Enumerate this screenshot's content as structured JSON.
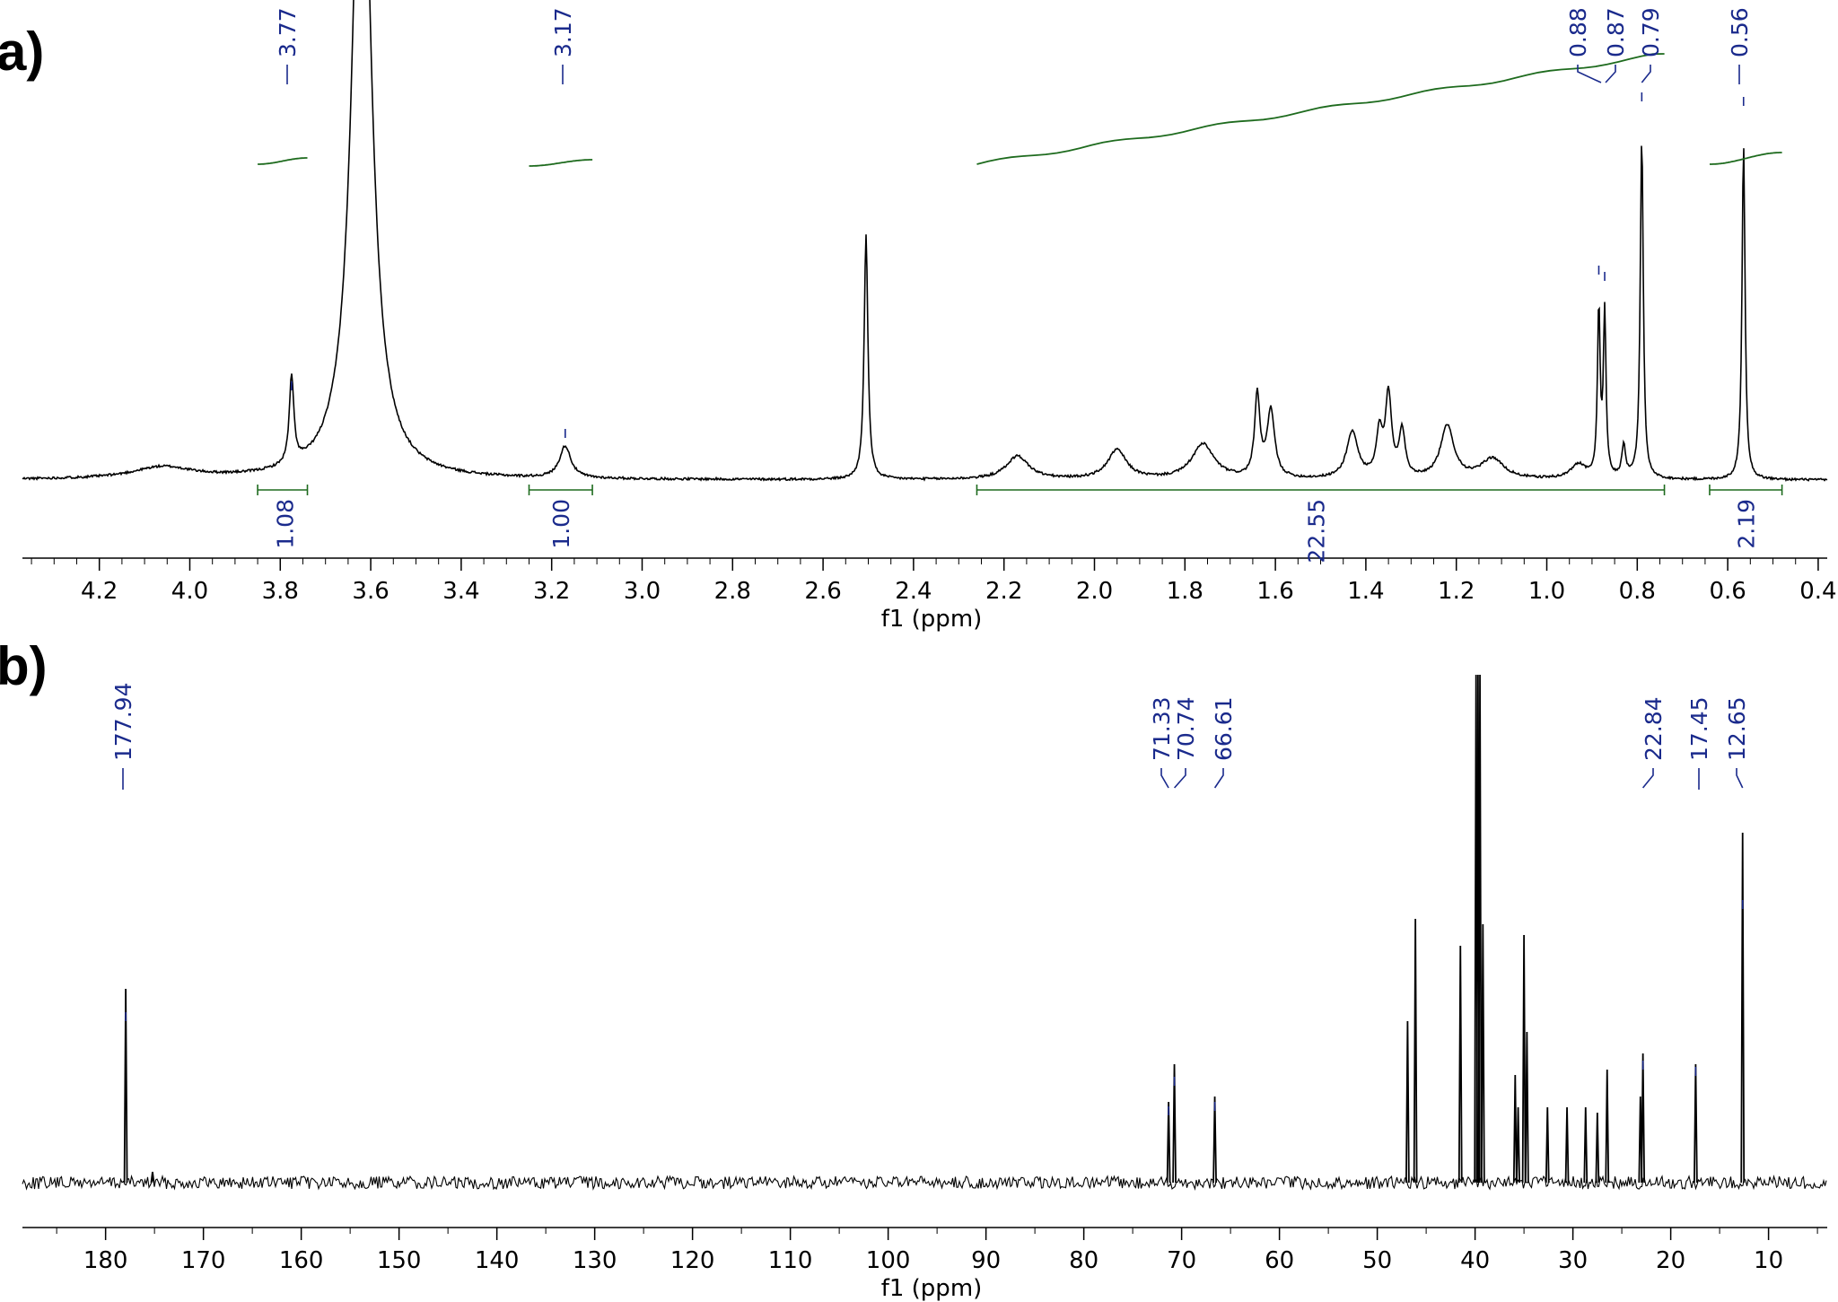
{
  "panel_labels": [
    "a)",
    "b)"
  ],
  "colors": {
    "spectrum": "#000000",
    "integral": "#1e6b1e",
    "label": "#1a2a8c"
  },
  "chart_data": [
    {
      "type": "line",
      "nucleus_panel": "a)",
      "xlabel": "f1 (ppm)",
      "xlim": [
        4.37,
        0.38
      ],
      "x_reversed": true,
      "tick_values": [
        4.2,
        4.0,
        3.8,
        3.6,
        3.4,
        3.2,
        3.0,
        2.8,
        2.6,
        2.4,
        2.2,
        2.0,
        1.8,
        1.6,
        1.4,
        1.2,
        1.0,
        0.8,
        0.6,
        0.4
      ],
      "tick_labels": [
        "4.2",
        "4.0",
        "3.8",
        "3.6",
        "3.4",
        "3.2",
        "3.0",
        "2.8",
        "2.6",
        "2.4",
        "2.2",
        "2.0",
        "1.8",
        "1.6",
        "1.4",
        "1.2",
        "1.0",
        "0.8",
        "0.6",
        "0.4"
      ],
      "peak_labels": [
        {
          "ppm": 3.77,
          "label": "3.77"
        },
        {
          "ppm": 3.17,
          "label": "3.17"
        },
        {
          "ppm": 0.88,
          "label": "0.88"
        },
        {
          "ppm": 0.87,
          "label": "0.87"
        },
        {
          "ppm": 0.79,
          "label": "0.79"
        },
        {
          "ppm": 0.56,
          "label": "0.56"
        }
      ],
      "peaks": [
        {
          "ppm": 3.62,
          "height": 2.5,
          "width": 0.025
        },
        {
          "ppm": 3.775,
          "height": 0.3,
          "width": 0.006
        },
        {
          "ppm": 3.17,
          "height": 0.11,
          "width": 0.015
        },
        {
          "ppm": 2.505,
          "height": 0.84,
          "width": 0.005
        },
        {
          "ppm": 4.06,
          "height": 0.04,
          "width": 0.08
        },
        {
          "ppm": 0.885,
          "height": 0.58,
          "width": 0.0035
        },
        {
          "ppm": 0.872,
          "height": 0.56,
          "width": 0.0035
        },
        {
          "ppm": 0.79,
          "height": 1.18,
          "width": 0.004
        },
        {
          "ppm": 0.565,
          "height": 1.16,
          "width": 0.004
        },
        {
          "ppm": 0.83,
          "height": 0.11,
          "width": 0.005
        },
        {
          "ppm": 1.64,
          "height": 0.28,
          "width": 0.007
        },
        {
          "ppm": 1.61,
          "height": 0.23,
          "width": 0.01
        },
        {
          "ppm": 1.35,
          "height": 0.28,
          "width": 0.008
        },
        {
          "ppm": 1.37,
          "height": 0.15,
          "width": 0.008
        },
        {
          "ppm": 1.32,
          "height": 0.16,
          "width": 0.008
        },
        {
          "ppm": 1.43,
          "height": 0.16,
          "width": 0.015
        },
        {
          "ppm": 1.22,
          "height": 0.18,
          "width": 0.018
        },
        {
          "ppm": 1.76,
          "height": 0.12,
          "width": 0.03
        },
        {
          "ppm": 1.95,
          "height": 0.1,
          "width": 0.025
        },
        {
          "ppm": 2.17,
          "height": 0.08,
          "width": 0.03
        },
        {
          "ppm": 1.12,
          "height": 0.07,
          "width": 0.03
        },
        {
          "ppm": 0.93,
          "height": 0.05,
          "width": 0.02
        }
      ],
      "integrals": [
        {
          "from": 3.85,
          "to": 3.74,
          "value": "1.08",
          "label_ppm": 3.79
        },
        {
          "from": 3.25,
          "to": 3.11,
          "value": "1.00",
          "label_ppm": 3.18
        },
        {
          "from": 2.26,
          "to": 0.74,
          "value": "22.55",
          "label_ppm": 1.51
        },
        {
          "from": 0.64,
          "to": 0.48,
          "value": "2.19",
          "label_ppm": 0.56
        }
      ]
    },
    {
      "type": "line",
      "nucleus_panel": "b)",
      "xlabel": "f1 (ppm)",
      "xlim": [
        188.5,
        4.0
      ],
      "x_reversed": true,
      "tick_values": [
        180,
        170,
        160,
        150,
        140,
        130,
        120,
        110,
        100,
        90,
        80,
        70,
        60,
        50,
        40,
        30,
        20,
        10
      ],
      "tick_labels": [
        "180",
        "170",
        "160",
        "150",
        "140",
        "130",
        "120",
        "110",
        "100",
        "90",
        "80",
        "70",
        "60",
        "50",
        "40",
        "30",
        "20",
        "10"
      ],
      "peak_labels": [
        {
          "ppm": 177.94,
          "label": "177.94"
        },
        {
          "ppm": 71.33,
          "label": "71.33"
        },
        {
          "ppm": 70.74,
          "label": "70.74"
        },
        {
          "ppm": 66.61,
          "label": "66.61"
        },
        {
          "ppm": 22.84,
          "label": "22.84"
        },
        {
          "ppm": 17.45,
          "label": "17.45"
        },
        {
          "ppm": 12.65,
          "label": "12.65"
        }
      ],
      "peaks": [
        {
          "ppm": 177.94,
          "height": 0.36
        },
        {
          "ppm": 175.2,
          "height": 0.02
        },
        {
          "ppm": 71.33,
          "height": 0.15
        },
        {
          "ppm": 70.74,
          "height": 0.22
        },
        {
          "ppm": 66.61,
          "height": 0.16
        },
        {
          "ppm": 46.9,
          "height": 0.3
        },
        {
          "ppm": 46.1,
          "height": 0.49
        },
        {
          "ppm": 41.5,
          "height": 0.44
        },
        {
          "ppm": 39.9,
          "height": 1.25
        },
        {
          "ppm": 39.7,
          "height": 1.25
        },
        {
          "ppm": 39.5,
          "height": 1.25
        },
        {
          "ppm": 39.2,
          "height": 0.48
        },
        {
          "ppm": 35.9,
          "height": 0.2
        },
        {
          "ppm": 35.6,
          "height": 0.14
        },
        {
          "ppm": 35.0,
          "height": 0.46
        },
        {
          "ppm": 34.7,
          "height": 0.28
        },
        {
          "ppm": 32.6,
          "height": 0.14
        },
        {
          "ppm": 30.6,
          "height": 0.14
        },
        {
          "ppm": 28.7,
          "height": 0.14
        },
        {
          "ppm": 27.5,
          "height": 0.13
        },
        {
          "ppm": 26.5,
          "height": 0.21
        },
        {
          "ppm": 23.1,
          "height": 0.16
        },
        {
          "ppm": 22.84,
          "height": 0.24
        },
        {
          "ppm": 17.45,
          "height": 0.22
        },
        {
          "ppm": 12.65,
          "height": 0.65
        }
      ]
    }
  ]
}
